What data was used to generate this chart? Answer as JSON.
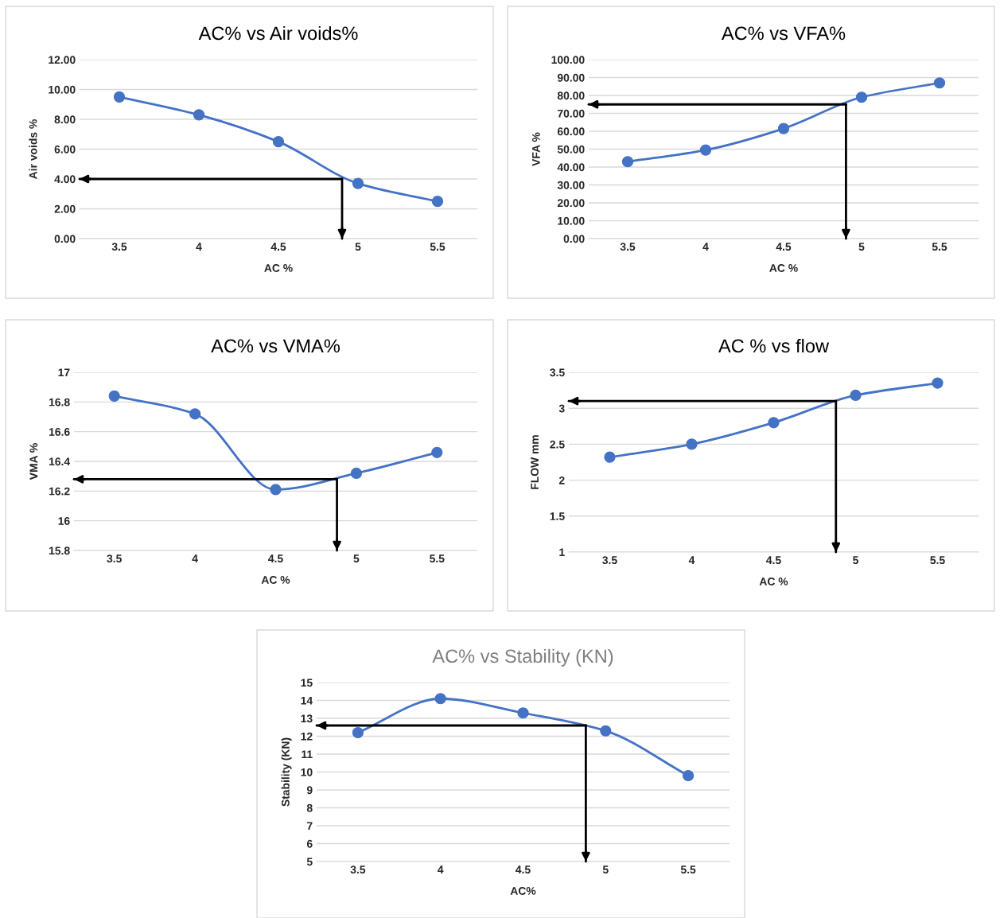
{
  "chart_data": [
    {
      "type": "line",
      "title": "AC% vs Air voids%",
      "xlabel": "AC %",
      "ylabel": "Air voids %",
      "x": [
        3.5,
        4,
        4.5,
        5,
        5.5
      ],
      "series": [
        {
          "color": "#4472c4",
          "values": [
            9.5,
            8.3,
            6.5,
            3.7,
            2.5
          ]
        }
      ],
      "xlim": [
        3.25,
        5.75
      ],
      "xticks": [
        3.5,
        4,
        4.5,
        5,
        5.5
      ],
      "ylim": [
        0,
        12
      ],
      "yticks": [
        {
          "value": 0,
          "label": "0.00"
        },
        {
          "value": 2,
          "label": "2.00"
        },
        {
          "value": 4,
          "label": "4.00"
        },
        {
          "value": 6,
          "label": "6.00"
        },
        {
          "value": 8,
          "label": "8.00"
        },
        {
          "value": 10,
          "label": "10.00"
        },
        {
          "value": 12,
          "label": "12.00"
        }
      ],
      "grid": "y",
      "marker": "circle",
      "line_style": "solid",
      "ref_lines": [
        {
          "axis": "y",
          "value": 4.0,
          "color": "#000000"
        },
        {
          "axis": "x",
          "value": 4.9,
          "color": "#000000"
        }
      ]
    },
    {
      "type": "line",
      "title": "AC% vs VFA%",
      "xlabel": "AC %",
      "ylabel": "VFA %",
      "x": [
        3.5,
        4,
        4.5,
        5,
        5.5
      ],
      "series": [
        {
          "color": "#4472c4",
          "values": [
            43,
            49.5,
            61.5,
            79,
            87
          ]
        }
      ],
      "xlim": [
        3.25,
        5.75
      ],
      "xticks": [
        3.5,
        4,
        4.5,
        5,
        5.5
      ],
      "ylim": [
        0,
        100
      ],
      "yticks": [
        {
          "value": 0,
          "label": "0.00"
        },
        {
          "value": 10,
          "label": "10.00"
        },
        {
          "value": 20,
          "label": "20.00"
        },
        {
          "value": 30,
          "label": "30.00"
        },
        {
          "value": 40,
          "label": "40.00"
        },
        {
          "value": 50,
          "label": "50.00"
        },
        {
          "value": 60,
          "label": "60.00"
        },
        {
          "value": 70,
          "label": "70.00"
        },
        {
          "value": 80,
          "label": "80.00"
        },
        {
          "value": 90,
          "label": "90.00"
        },
        {
          "value": 100,
          "label": "100.00"
        }
      ],
      "grid": "y",
      "marker": "circle",
      "line_style": "solid",
      "ref_lines": [
        {
          "axis": "y",
          "value": 75,
          "color": "#000000"
        },
        {
          "axis": "x",
          "value": 4.9,
          "color": "#000000"
        }
      ]
    },
    {
      "type": "line",
      "title": "AC% vs VMA%",
      "xlabel": "AC %",
      "ylabel": "VMA %",
      "x": [
        3.5,
        4,
        4.5,
        5,
        5.5
      ],
      "series": [
        {
          "color": "#4472c4",
          "values": [
            16.84,
            16.72,
            16.21,
            16.32,
            16.46
          ]
        }
      ],
      "xlim": [
        3.25,
        5.75
      ],
      "xticks": [
        3.5,
        4,
        4.5,
        5,
        5.5
      ],
      "ylim": [
        15.8,
        17
      ],
      "yticks": [
        15.8,
        16,
        16.2,
        16.4,
        16.6,
        16.8,
        17
      ],
      "grid": "y",
      "marker": "circle",
      "line_style": "solid",
      "ref_lines": [
        {
          "axis": "y",
          "value": 16.28,
          "color": "#000000"
        },
        {
          "axis": "x",
          "value": 4.88,
          "color": "#000000"
        }
      ]
    },
    {
      "type": "line",
      "title": "AC % vs flow",
      "xlabel": "AC %",
      "ylabel": "FLOW mm",
      "x": [
        3.5,
        4,
        4.5,
        5,
        5.5
      ],
      "series": [
        {
          "color": "#4472c4",
          "values": [
            2.32,
            2.5,
            2.8,
            3.18,
            3.35
          ]
        }
      ],
      "xlim": [
        3.25,
        5.75
      ],
      "xticks": [
        3.5,
        4,
        4.5,
        5,
        5.5
      ],
      "ylim": [
        1,
        3.5
      ],
      "yticks": [
        1,
        1.5,
        2,
        2.5,
        3,
        3.5
      ],
      "grid": "y",
      "marker": "circle",
      "line_style": "solid",
      "ref_lines": [
        {
          "axis": "y",
          "value": 3.1,
          "color": "#000000"
        },
        {
          "axis": "x",
          "value": 4.88,
          "color": "#000000"
        }
      ]
    },
    {
      "type": "line",
      "title": "AC% vs Stability (KN)",
      "xlabel": "AC%",
      "ylabel": "Stability (KN)",
      "x": [
        3.5,
        4,
        4.5,
        5,
        5.5
      ],
      "series": [
        {
          "color": "#4472c4",
          "values": [
            12.2,
            14.1,
            13.3,
            12.3,
            9.8
          ]
        }
      ],
      "xlim": [
        3.25,
        5.75
      ],
      "xticks": [
        3.5,
        4,
        4.5,
        5,
        5.5
      ],
      "ylim": [
        5,
        15
      ],
      "yticks": [
        5,
        6,
        7,
        8,
        9,
        10,
        11,
        12,
        13,
        14,
        15
      ],
      "grid": "y",
      "marker": "circle",
      "line_style": "solid",
      "ref_lines": [
        {
          "axis": "y",
          "value": 12.6,
          "color": "#000000"
        },
        {
          "axis": "x",
          "value": 4.88,
          "color": "#000000"
        }
      ]
    }
  ]
}
